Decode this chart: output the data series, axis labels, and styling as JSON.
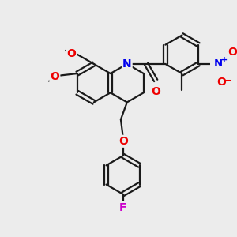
{
  "background_color": "#ececec",
  "bond_color": "#1a1a1a",
  "bond_width": 1.6,
  "atom_colors": {
    "N": "#0000ee",
    "O": "#ee0000",
    "F": "#cc00cc"
  },
  "ring_r": 0.46
}
